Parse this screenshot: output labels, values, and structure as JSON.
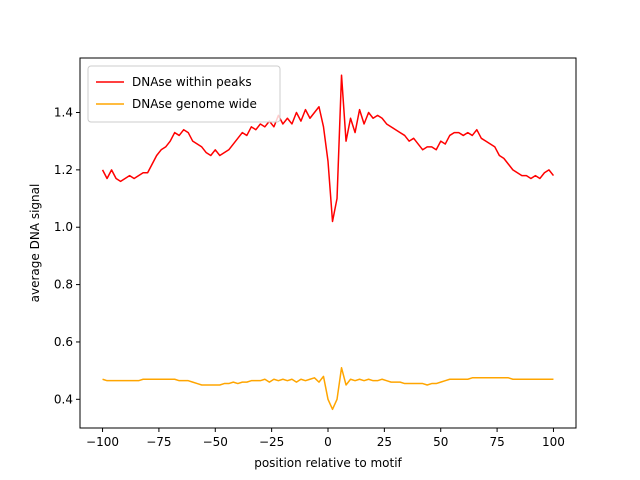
{
  "chart_data": {
    "type": "line",
    "x": [
      -100,
      -98,
      -96,
      -94,
      -92,
      -90,
      -88,
      -86,
      -84,
      -82,
      -80,
      -78,
      -76,
      -74,
      -72,
      -70,
      -68,
      -66,
      -64,
      -62,
      -60,
      -58,
      -56,
      -54,
      -52,
      -50,
      -48,
      -46,
      -44,
      -42,
      -40,
      -38,
      -36,
      -34,
      -32,
      -30,
      -28,
      -26,
      -24,
      -22,
      -20,
      -18,
      -16,
      -14,
      -12,
      -10,
      -8,
      -6,
      -4,
      -2,
      0,
      2,
      4,
      6,
      8,
      10,
      12,
      14,
      16,
      18,
      20,
      22,
      24,
      26,
      28,
      30,
      32,
      34,
      36,
      38,
      40,
      42,
      44,
      46,
      48,
      50,
      52,
      54,
      56,
      58,
      60,
      62,
      64,
      66,
      68,
      70,
      72,
      74,
      76,
      78,
      80,
      82,
      84,
      86,
      88,
      90,
      92,
      94,
      96,
      98,
      100
    ],
    "series": [
      {
        "name": "DNAse within peaks",
        "color": "#ff0000",
        "values": [
          1.2,
          1.17,
          1.2,
          1.17,
          1.16,
          1.17,
          1.18,
          1.17,
          1.18,
          1.19,
          1.19,
          1.22,
          1.25,
          1.27,
          1.28,
          1.3,
          1.33,
          1.32,
          1.34,
          1.33,
          1.3,
          1.29,
          1.28,
          1.26,
          1.25,
          1.27,
          1.25,
          1.26,
          1.27,
          1.29,
          1.31,
          1.33,
          1.32,
          1.35,
          1.34,
          1.36,
          1.35,
          1.37,
          1.35,
          1.39,
          1.36,
          1.38,
          1.36,
          1.4,
          1.37,
          1.41,
          1.38,
          1.4,
          1.42,
          1.35,
          1.23,
          1.02,
          1.1,
          1.53,
          1.3,
          1.38,
          1.33,
          1.41,
          1.36,
          1.4,
          1.38,
          1.39,
          1.38,
          1.36,
          1.35,
          1.34,
          1.33,
          1.32,
          1.3,
          1.31,
          1.29,
          1.27,
          1.28,
          1.28,
          1.27,
          1.3,
          1.29,
          1.32,
          1.33,
          1.33,
          1.32,
          1.33,
          1.32,
          1.34,
          1.31,
          1.3,
          1.29,
          1.28,
          1.25,
          1.24,
          1.22,
          1.2,
          1.19,
          1.18,
          1.18,
          1.17,
          1.18,
          1.17,
          1.19,
          1.2,
          1.18
        ]
      },
      {
        "name": "DNAse genome wide",
        "color": "#ffa500",
        "values": [
          0.47,
          0.465,
          0.465,
          0.465,
          0.465,
          0.465,
          0.465,
          0.465,
          0.465,
          0.47,
          0.47,
          0.47,
          0.47,
          0.47,
          0.47,
          0.47,
          0.47,
          0.465,
          0.465,
          0.465,
          0.46,
          0.455,
          0.45,
          0.45,
          0.45,
          0.45,
          0.45,
          0.455,
          0.455,
          0.46,
          0.455,
          0.46,
          0.46,
          0.465,
          0.465,
          0.465,
          0.47,
          0.46,
          0.47,
          0.465,
          0.47,
          0.465,
          0.47,
          0.46,
          0.47,
          0.465,
          0.47,
          0.475,
          0.46,
          0.48,
          0.4,
          0.365,
          0.4,
          0.51,
          0.45,
          0.47,
          0.465,
          0.47,
          0.465,
          0.47,
          0.465,
          0.465,
          0.47,
          0.465,
          0.46,
          0.46,
          0.46,
          0.455,
          0.455,
          0.455,
          0.455,
          0.455,
          0.45,
          0.455,
          0.455,
          0.46,
          0.465,
          0.47,
          0.47,
          0.47,
          0.47,
          0.47,
          0.475,
          0.475,
          0.475,
          0.475,
          0.475,
          0.475,
          0.475,
          0.475,
          0.475,
          0.47,
          0.47,
          0.47,
          0.47,
          0.47,
          0.47,
          0.47,
          0.47,
          0.47,
          0.47
        ]
      }
    ],
    "xlabel": "position relative to motif",
    "ylabel": "average DNA signal",
    "xlim": [
      -110,
      110
    ],
    "ylim": [
      0.3,
      1.59
    ],
    "xticks": [
      {
        "value": -100,
        "label": "−100"
      },
      {
        "value": -75,
        "label": "−75"
      },
      {
        "value": -50,
        "label": "−50"
      },
      {
        "value": -25,
        "label": "−25"
      },
      0,
      25,
      50,
      75,
      100
    ],
    "yticks": [
      0.4,
      0.6,
      0.8,
      {
        "value": 1,
        "label": "1.0"
      },
      1.2,
      1.4
    ],
    "legend": "upper left",
    "grid": false
  }
}
